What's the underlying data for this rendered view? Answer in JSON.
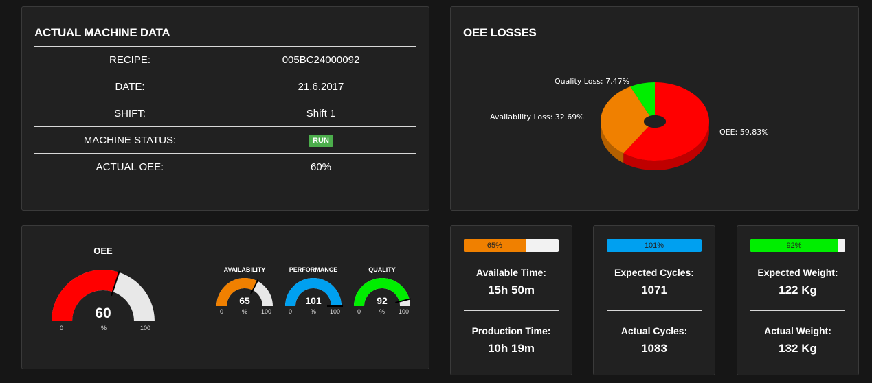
{
  "machine": {
    "title": "ACTUAL MACHINE DATA",
    "rows": [
      {
        "label": "RECIPE:",
        "value": "005BC24000092"
      },
      {
        "label": "DATE:",
        "value": "21.6.2017"
      },
      {
        "label": "SHIFT:",
        "value": "Shift 1"
      },
      {
        "label": "MACHINE STATUS:",
        "value": "RUN"
      },
      {
        "label": "ACTUAL OEE:",
        "value": "60%"
      }
    ],
    "status_color": "#4cae4c"
  },
  "losses": {
    "title": "OEE LOSSES",
    "chart_data": {
      "type": "pie",
      "slices": [
        {
          "name": "OEE",
          "value": 59.83,
          "color": "#ff0000",
          "label": "OEE: 59.83%"
        },
        {
          "name": "Availability Loss",
          "value": 32.69,
          "color": "#f08000",
          "label": "Availability Loss: 32.69%"
        },
        {
          "name": "Quality Loss",
          "value": 7.47,
          "color": "#00ee00",
          "label": "Quality Loss: 7.47%"
        }
      ]
    }
  },
  "gauges": {
    "main": {
      "title": "OEE",
      "value": 60,
      "display": "60",
      "min": "0",
      "max": "100",
      "unit": "%",
      "color": "#ff0000"
    },
    "small": [
      {
        "title": "AVAILABILITY",
        "value": 65,
        "display": "65",
        "min": "0",
        "max": "100",
        "unit": "%",
        "color": "#f08000"
      },
      {
        "title": "PERFORMANCE",
        "value": 101,
        "display": "101",
        "min": "0",
        "max": "100",
        "unit": "%",
        "color": "#00a0f0"
      },
      {
        "title": "QUALITY",
        "value": 92,
        "display": "92",
        "min": "0",
        "max": "100",
        "unit": "%",
        "color": "#00ee00"
      }
    ]
  },
  "cards": [
    {
      "progress": 65,
      "progress_label": "65%",
      "color": "#f08000",
      "label1": "Available Time:",
      "value1": "15h 50m",
      "label2": "Production Time:",
      "value2": "10h 19m"
    },
    {
      "progress": 101,
      "progress_label": "101%",
      "color": "#00a0f0",
      "label1": "Expected Cycles:",
      "value1": "1071",
      "label2": "Actual Cycles:",
      "value2": "1083"
    },
    {
      "progress": 92,
      "progress_label": "92%",
      "color": "#00ee00",
      "label1": "Expected Weight:",
      "value1": "122 Kg",
      "label2": "Actual Weight:",
      "value2": "132 Kg"
    }
  ]
}
